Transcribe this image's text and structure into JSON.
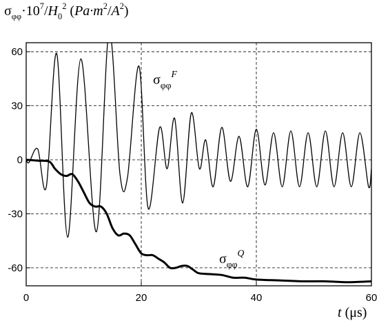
{
  "chart_data": {
    "type": "line",
    "y_label": [
      {
        "text": "σ"
      },
      {
        "text": "φφ",
        "shift": "sub"
      },
      {
        "text": "·10"
      },
      {
        "text": "7",
        "shift": "sup"
      },
      {
        "text": "/"
      },
      {
        "text": "H",
        "italic": true
      },
      {
        "text": "0",
        "shift": "sub"
      },
      {
        "text": "2",
        "shift": "sup"
      },
      {
        "text": " ("
      },
      {
        "text": "Pa·m",
        "italic": true
      },
      {
        "text": "2",
        "shift": "sup"
      },
      {
        "text": "/"
      },
      {
        "text": "A",
        "italic": true
      },
      {
        "text": "2",
        "shift": "sup"
      },
      {
        "text": ")"
      }
    ],
    "x_label": [
      {
        "text": "t",
        "italic": true
      },
      {
        "text": " (μs)"
      }
    ],
    "xlim": [
      0,
      60
    ],
    "xticks": [
      0,
      20,
      40,
      60
    ],
    "ylim": [
      -70,
      65
    ],
    "yticks": [
      -60,
      -30,
      0,
      30,
      60
    ],
    "grid": true,
    "series": [
      {
        "label": [
          {
            "text": "σ"
          },
          {
            "text": "φφ",
            "shift": "sub"
          },
          {
            "text": "F",
            "shift": "sup",
            "italic": true
          }
        ],
        "color": "#000000",
        "width": 1.3,
        "x": [
          0,
          0.5,
          2,
          3.5,
          5.3,
          7.2,
          9.5,
          12.2,
          14.4,
          16.3,
          17.6,
          19.6,
          21.2,
          23.2,
          24.5,
          25.8,
          27.2,
          28.7,
          30.1,
          31.2,
          32.5,
          34,
          35.5,
          37,
          38.5,
          40,
          41.5,
          43,
          44.5,
          46,
          47.5,
          49,
          50.5,
          52,
          53.5,
          55,
          56.5,
          58,
          59.5,
          60
        ],
        "values": [
          0,
          -1.5,
          6,
          -15,
          59,
          -43,
          56,
          -40,
          71,
          -8,
          -10,
          52,
          -27,
          18,
          -5,
          23,
          -24,
          26,
          -5,
          11,
          -15,
          18,
          -12,
          13,
          -15,
          17,
          -14,
          15,
          -15,
          16,
          -15,
          15,
          -15,
          16,
          -15,
          15,
          -15,
          15,
          -15,
          -5
        ]
      },
      {
        "label": [
          {
            "text": "σ"
          },
          {
            "text": "φφ",
            "shift": "sub"
          },
          {
            "text": "Q",
            "shift": "sup",
            "italic": true
          }
        ],
        "color": "#000000",
        "width": 3,
        "x": [
          0,
          2,
          4,
          5,
          6,
          7,
          8,
          9,
          10,
          11,
          12,
          13,
          14,
          15,
          16,
          17,
          18,
          19,
          20,
          21,
          22,
          23,
          24,
          25,
          26,
          27,
          28,
          29,
          30,
          32,
          34,
          36,
          38,
          40,
          44,
          48,
          52,
          56,
          60
        ],
        "values": [
          0,
          -0.5,
          -1,
          -5,
          -8,
          -9,
          -8,
          -12,
          -18,
          -24,
          -26,
          -26,
          -30,
          -38,
          -42,
          -41,
          -42,
          -47,
          -52,
          -53,
          -53,
          -55,
          -57,
          -60,
          -60,
          -59,
          -59,
          -61,
          -63,
          -63.5,
          -64,
          -65.5,
          -65.5,
          -66.5,
          -67,
          -67.5,
          -67.5,
          -68,
          -67.5
        ]
      }
    ]
  }
}
